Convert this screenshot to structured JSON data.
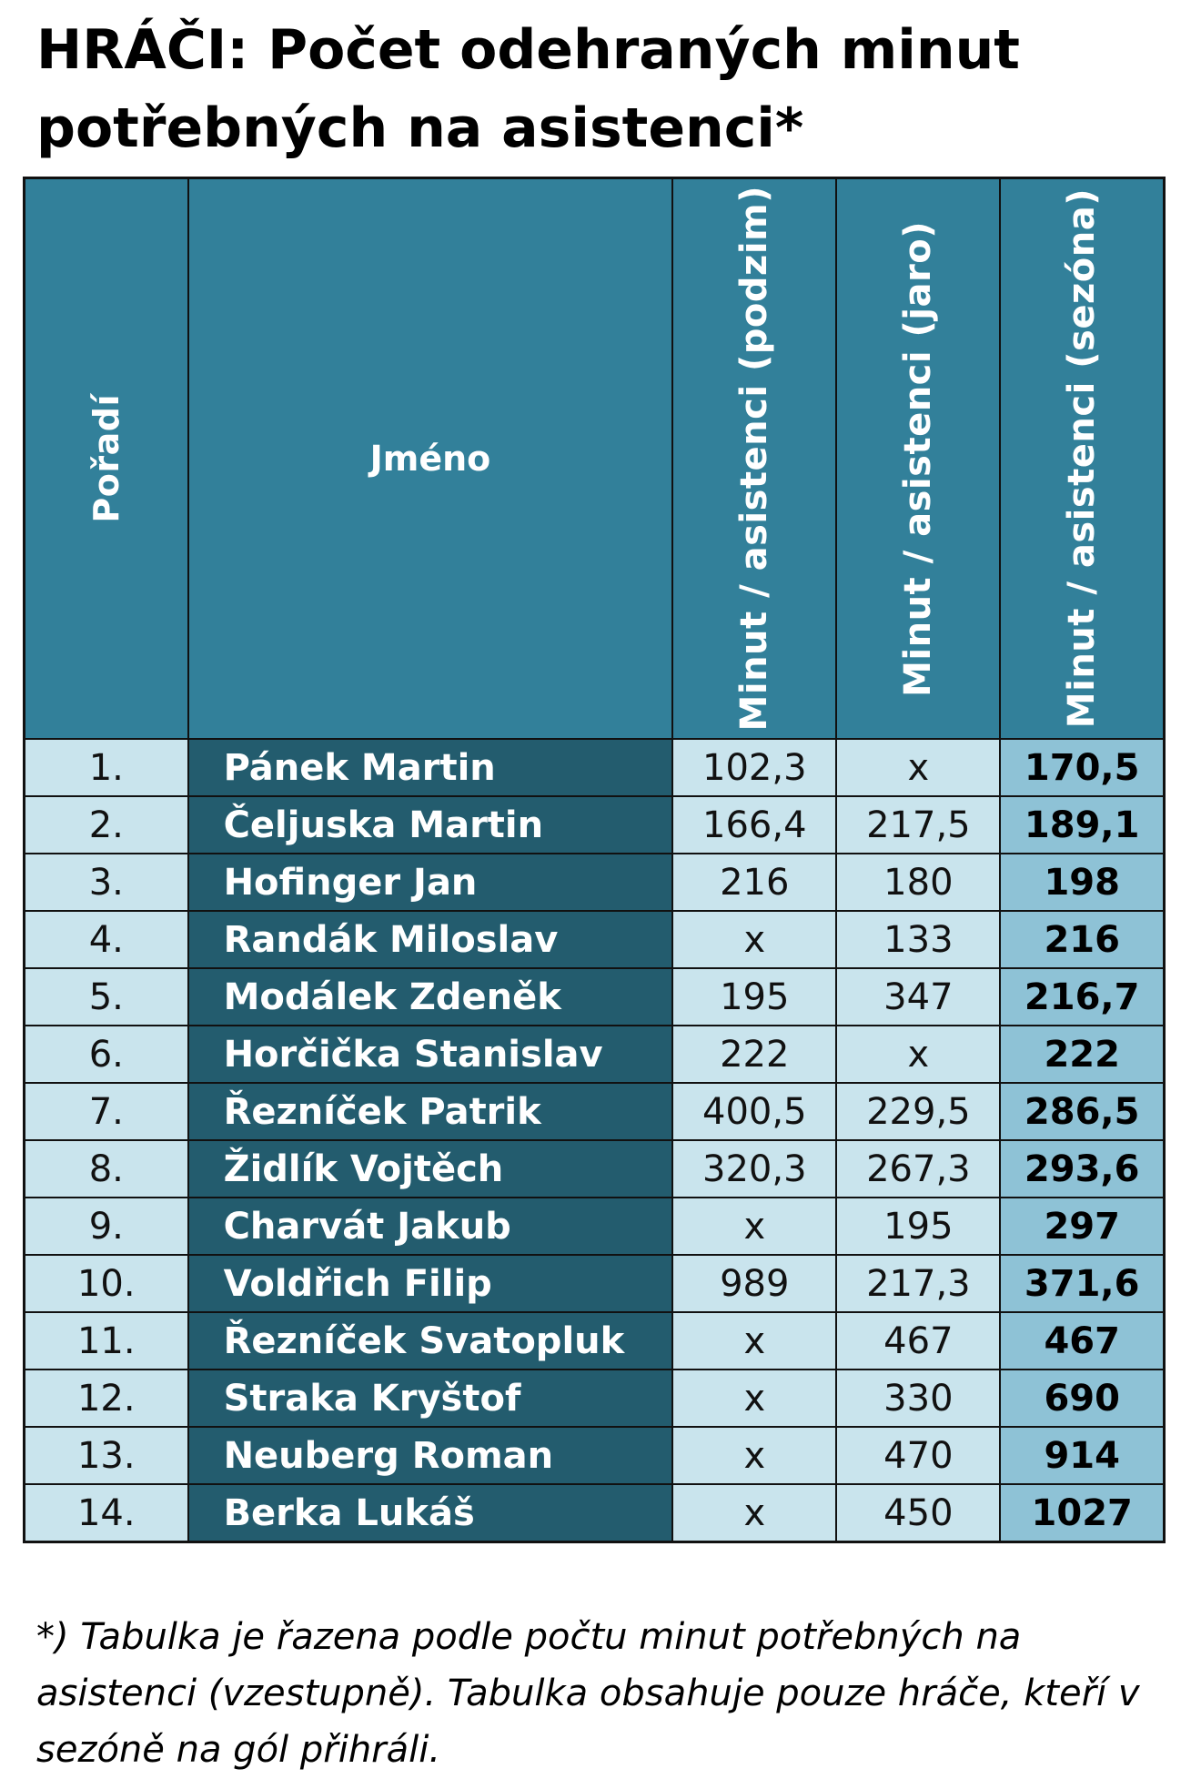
{
  "title": "HRÁČI: Počet odehraných minut potřebných na asistenci*",
  "columns": {
    "rank": "Pořadí",
    "name": "Jméno",
    "autumn": "Minut / asistenci (podzim)",
    "spring": "Minut / asistenci (jaro)",
    "season": "Minut / asistenci (sezóna)"
  },
  "rows": [
    {
      "rank": "1.",
      "name": "Pánek Martin",
      "autumn": "102,3",
      "spring": "x",
      "season": "170,5"
    },
    {
      "rank": "2.",
      "name": "Čeljuska Martin",
      "autumn": "166,4",
      "spring": "217,5",
      "season": "189,1"
    },
    {
      "rank": "3.",
      "name": "Hofinger Jan",
      "autumn": "216",
      "spring": "180",
      "season": "198"
    },
    {
      "rank": "4.",
      "name": "Randák Miloslav",
      "autumn": "x",
      "spring": "133",
      "season": "216"
    },
    {
      "rank": "5.",
      "name": "Modálek Zdeněk",
      "autumn": "195",
      "spring": "347",
      "season": "216,7"
    },
    {
      "rank": "6.",
      "name": "Horčička Stanislav",
      "autumn": "222",
      "spring": "x",
      "season": "222"
    },
    {
      "rank": "7.",
      "name": "Řezníček Patrik",
      "autumn": "400,5",
      "spring": "229,5",
      "season": "286,5"
    },
    {
      "rank": "8.",
      "name": "Židlík Vojtěch",
      "autumn": "320,3",
      "spring": "267,3",
      "season": "293,6"
    },
    {
      "rank": "9.",
      "name": "Charvát Jakub",
      "autumn": "x",
      "spring": "195",
      "season": "297"
    },
    {
      "rank": "10.",
      "name": "Voldřich Filip",
      "autumn": "989",
      "spring": "217,3",
      "season": "371,6"
    },
    {
      "rank": "11.",
      "name": "Řezníček Svatopluk",
      "autumn": "x",
      "spring": "467",
      "season": "467"
    },
    {
      "rank": "12.",
      "name": "Straka Kryštof",
      "autumn": "x",
      "spring": "330",
      "season": "690"
    },
    {
      "rank": "13.",
      "name": "Neuberg Roman",
      "autumn": "x",
      "spring": "470",
      "season": "914"
    },
    {
      "rank": "14.",
      "name": "Berka Lukáš",
      "autumn": "x",
      "spring": "450",
      "season": "1027"
    }
  ],
  "footnote": "*) Tabulka je řazena podle počtu minut potřebných na asistenci (vzestupně). Tabulka obsahuje pouze hráče, kteří v sezóně na gól přihráli.",
  "colors": {
    "header_bg": "#32809a",
    "name_bg": "#235c6e",
    "light_cell_bg": "#c9e4ed",
    "season_bg": "#8ec2d6"
  }
}
